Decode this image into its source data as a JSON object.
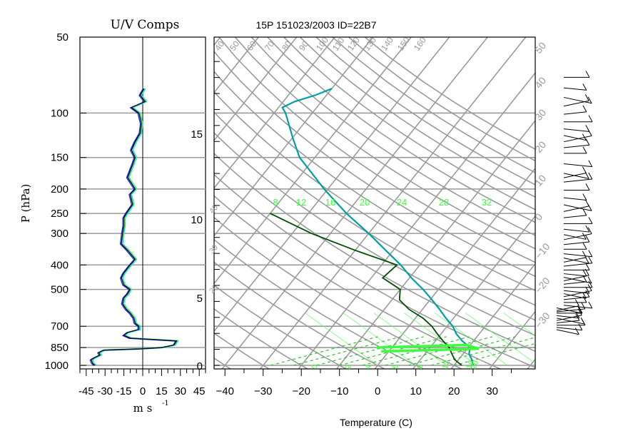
{
  "chart_data": [
    {
      "type": "line",
      "title": "U/V Comps",
      "xlabel_prefix": "m s",
      "xlabel_exponent": "-1",
      "ylabel": "P (hPa)",
      "y_scale": "log",
      "ylim": [
        1000,
        50
      ],
      "xlim": [
        -50,
        50
      ],
      "x_ticks": [
        -45,
        -30,
        -15,
        0,
        15,
        30,
        45
      ],
      "x_tick_labels": [
        "-45",
        "-30",
        "-15",
        "0",
        "15",
        "30",
        "45"
      ],
      "y_ticks": [
        50,
        100,
        150,
        200,
        250,
        300,
        400,
        500,
        700,
        850,
        1000
      ],
      "y_tick_labels": [
        "50",
        "100",
        "150",
        "200",
        "250",
        "300",
        "400",
        "500",
        "700",
        "850",
        "1000"
      ],
      "grid": true,
      "series_colors": [
        "#00e5ee",
        "#1a1aff",
        "#7cfc00",
        "#000000"
      ],
      "series": [
        {
          "p": [
            1000,
            980,
            950,
            930,
            910,
            890,
            870,
            860,
            850,
            830,
            800,
            780,
            760,
            740,
            720,
            700,
            680,
            650,
            620,
            600,
            570,
            540,
            520,
            500,
            480,
            450,
            430,
            400,
            380,
            350,
            330,
            300,
            280,
            260,
            250,
            230,
            210,
            200,
            180,
            160,
            150,
            140,
            130,
            120,
            110,
            100,
            95,
            90,
            85,
            80
          ],
          "values": [
            -38,
            -40,
            -41,
            -38,
            -34,
            -35,
            -31,
            -2,
            15,
            25,
            27,
            -10,
            -15,
            -12,
            -3,
            -3,
            -6,
            -7,
            -10,
            -13,
            -16,
            -15,
            -12,
            -10,
            -15,
            -17,
            -15,
            -10,
            -6,
            -12,
            -17,
            -16,
            -15,
            -15,
            -13,
            -8,
            -10,
            -6,
            -12,
            -8,
            -6,
            -9,
            -6,
            -2,
            -1,
            -3,
            -9,
            2,
            -2,
            1
          ]
        }
      ]
    },
    {
      "type": "line",
      "subtype": "skew-T log-P thermodynamic diagram",
      "title": "15P 151023/2003 ID=22B7",
      "xlabel": "Temperature (C)",
      "xlim": [
        -45,
        40
      ],
      "x_ticks": [
        -40,
        -30,
        -20,
        -10,
        0,
        10,
        20,
        30
      ],
      "x_tick_labels": [
        "−40",
        "−30",
        "−20",
        "−10",
        "0",
        "10",
        "20",
        "30"
      ],
      "y_scale": "log",
      "ylim": [
        1000,
        50
      ],
      "pressure_gridlines": [
        1000,
        850,
        700,
        500,
        400,
        300,
        250,
        200,
        150,
        100
      ],
      "height_axis_ticks": [
        0,
        5,
        10,
        15
      ],
      "height_axis_labels": [
        "0",
        "5",
        "10",
        "15"
      ],
      "dry_adiabat_labels": [
        "40",
        "50",
        "60",
        "70",
        "80",
        "90",
        "100",
        "110",
        "120",
        "130",
        "140",
        "150",
        "160"
      ],
      "mixing_ratio_labels": [
        "8",
        "12",
        "16",
        "20",
        "24",
        "28",
        "32"
      ],
      "lower_moist_labels": [
        "0",
        "2",
        "4",
        "6",
        "8",
        "12",
        "16",
        "20"
      ],
      "isotherm_labels": [
        "50",
        "40",
        "30",
        "20",
        "10",
        "0",
        "−10",
        "−20",
        "−30",
        "−40",
        "−50"
      ],
      "side_labels": [
        "20",
        "30",
        "40"
      ],
      "grid": true,
      "series_colors": [
        "#00a0a0",
        "#004d00",
        "#3cff3c"
      ],
      "series": [
        {
          "p": [
            1000,
            950,
            900,
            850,
            800,
            750,
            700,
            650,
            600,
            550,
            500,
            450,
            400,
            350,
            300,
            250,
            200,
            175,
            150,
            125,
            110,
            100,
            95,
            90,
            85,
            80
          ],
          "values": [
            25,
            23.5,
            21.5,
            20.5,
            17,
            14,
            11.5,
            8,
            4.5,
            0.5,
            -4,
            -9.5,
            -15,
            -22,
            -30,
            -40,
            -51,
            -57,
            -64,
            -70,
            -74,
            -77,
            -79,
            -77,
            -73,
            -70
          ]
        },
        {
          "p": [
            1000,
            950,
            900,
            850,
            800,
            750,
            700,
            650,
            600,
            550,
            500,
            450,
            400,
            350,
            300,
            250
          ],
          "values": [
            22,
            19,
            17,
            15,
            12,
            9,
            6,
            2,
            -3.5,
            -8,
            -10,
            -17,
            -16,
            -30,
            -45,
            -60
          ]
        },
        {
          "p": [
            880,
            860,
            830,
            850
          ],
          "values": [
            -2,
            23,
            19,
            -4
          ]
        }
      ]
    },
    {
      "type": "scatter",
      "subtype": "wind barbs",
      "p": [
        1000,
        980,
        960,
        940,
        920,
        900,
        880,
        860,
        850,
        840,
        820,
        800,
        780,
        760,
        740,
        720,
        700,
        680,
        660,
        640,
        620,
        600,
        580,
        560,
        540,
        520,
        500,
        480,
        460,
        440,
        420,
        400,
        380,
        360,
        340,
        320,
        300,
        280,
        260,
        250,
        240,
        220,
        200,
        190,
        180,
        170,
        160,
        150,
        140,
        130,
        120,
        110,
        100
      ],
      "barb_color": "#000000"
    }
  ]
}
